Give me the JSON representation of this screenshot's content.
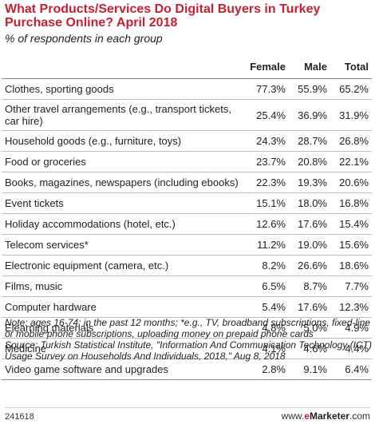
{
  "chart_data": {
    "type": "table",
    "title": "What Products/Services Do Digital Buyers in Turkey Purchase Online? April 2018",
    "subtitle": "% of respondents in each group",
    "columns": [
      "Female",
      "Male",
      "Total"
    ],
    "rows": [
      {
        "label": "Clothes, sporting goods",
        "female": "77.3%",
        "male": "55.9%",
        "total": "65.2%"
      },
      {
        "label": "Other travel arrangements (e.g., transport tickets, car hire)",
        "female": "25.4%",
        "male": "36.9%",
        "total": "31.9%"
      },
      {
        "label": "Household goods (e.g., furniture, toys)",
        "female": "24.3%",
        "male": "28.7%",
        "total": "26.8%"
      },
      {
        "label": "Food or groceries",
        "female": "23.7%",
        "male": "20.8%",
        "total": "22.1%"
      },
      {
        "label": "Books, magazines, newspapers (including ebooks)",
        "female": "22.3%",
        "male": "19.3%",
        "total": "20.6%"
      },
      {
        "label": "Event tickets",
        "female": "15.1%",
        "male": "18.0%",
        "total": "16.8%"
      },
      {
        "label": "Holiday accommodations (hotel, etc.)",
        "female": "12.6%",
        "male": "17.6%",
        "total": "15.4%"
      },
      {
        "label": "Telecom services*",
        "female": "11.2%",
        "male": "19.0%",
        "total": "15.6%"
      },
      {
        "label": "Electronic equipment (camera, etc.)",
        "female": "8.2%",
        "male": "26.6%",
        "total": "18.6%"
      },
      {
        "label": "Films, music",
        "female": "6.5%",
        "male": "8.7%",
        "total": "7.7%"
      },
      {
        "label": "Computer hardware",
        "female": "5.4%",
        "male": "17.6%",
        "total": "12.3%"
      },
      {
        "label": "Elearning materials",
        "female": "4.8%",
        "male": "5.0%",
        "total": "4.9%"
      },
      {
        "label": "Medicine",
        "female": "4.1%",
        "male": "4.6%",
        "total": "4.4%"
      },
      {
        "label": "Video game software and upgrades",
        "female": "2.8%",
        "male": "9.1%",
        "total": "6.4%"
      }
    ],
    "note": "Note: ages 16-74; in the past 12 months; *e.g., TV, broadband subscriptions, fixed-line or mobile phone subscriptions, uploading money on prepaid phone cards",
    "source": "Source: Turkish Statistical Institute, \"Information And Communication Technology (ICT) Usage Survey on Households And Individuals, 2018,\" Aug 8, 2018"
  },
  "footer": {
    "chart_id": "241618",
    "brand_prefix": "www.",
    "brand_e": "e",
    "brand_main": "Marketer",
    "brand_suffix": ".com"
  },
  "colors": {
    "title": "#c8202f",
    "text": "#222222",
    "rule": "#bdbdbd"
  }
}
